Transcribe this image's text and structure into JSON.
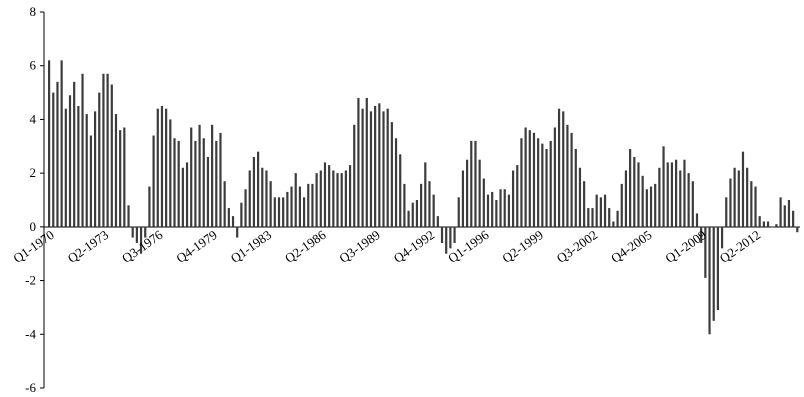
{
  "chart_data": {
    "type": "bar",
    "x_start_label": "Q1-1970",
    "x_tick_labels": [
      "Q1-1970",
      "Q2-1973",
      "Q3-1976",
      "Q4-1979",
      "Q1-1983",
      "Q2-1986",
      "Q3-1989",
      "Q4-1992",
      "Q1-1996",
      "Q2-1999",
      "Q3-2002",
      "Q4-2005",
      "Q1-2009",
      "Q2-2012"
    ],
    "y_ticks": [
      8,
      6,
      4,
      2,
      0,
      -2,
      -4,
      -6
    ],
    "ylim": [
      -6,
      8
    ],
    "grid": false,
    "legend": "none",
    "bar_color": "#3c3c3c",
    "values": [
      6.2,
      5.0,
      5.4,
      6.2,
      4.4,
      4.9,
      5.4,
      4.5,
      5.7,
      4.2,
      3.4,
      4.3,
      5.0,
      5.7,
      5.7,
      5.3,
      4.2,
      3.6,
      3.7,
      0.8,
      -0.4,
      -0.6,
      -1.0,
      -0.4,
      1.5,
      3.4,
      4.4,
      4.5,
      4.4,
      4.0,
      3.3,
      3.2,
      2.2,
      2.4,
      3.7,
      3.2,
      3.8,
      3.3,
      2.6,
      3.8,
      3.2,
      3.5,
      1.7,
      0.7,
      0.4,
      -0.4,
      0.9,
      1.4,
      2.1,
      2.6,
      2.8,
      2.2,
      2.1,
      1.7,
      1.1,
      1.1,
      1.1,
      1.3,
      1.5,
      2.0,
      1.5,
      1.1,
      1.6,
      1.6,
      2.0,
      2.1,
      2.4,
      2.3,
      2.1,
      2.0,
      2.0,
      2.1,
      2.3,
      3.8,
      4.8,
      4.4,
      4.8,
      4.3,
      4.5,
      4.6,
      4.3,
      4.4,
      3.9,
      3.3,
      2.7,
      1.6,
      0.6,
      0.9,
      1.0,
      1.6,
      2.4,
      1.7,
      1.2,
      0.4,
      -0.6,
      -1.0,
      -0.8,
      -0.6,
      1.1,
      2.1,
      2.5,
      3.2,
      3.2,
      2.5,
      1.8,
      1.2,
      1.3,
      1.0,
      1.4,
      1.4,
      1.2,
      2.1,
      2.3,
      3.3,
      3.7,
      3.6,
      3.5,
      3.3,
      3.1,
      2.9,
      3.2,
      3.7,
      4.4,
      4.3,
      3.8,
      3.5,
      2.9,
      2.2,
      1.7,
      0.7,
      0.7,
      1.2,
      1.1,
      1.2,
      0.7,
      0.2,
      0.6,
      1.6,
      2.1,
      2.9,
      2.6,
      2.4,
      1.9,
      1.4,
      1.5,
      1.6,
      2.2,
      3.0,
      2.4,
      2.4,
      2.5,
      2.1,
      2.5,
      2.0,
      1.7,
      0.5,
      -0.6,
      -1.9,
      -4.0,
      -3.5,
      -3.1,
      -0.8,
      1.1,
      1.8,
      2.2,
      2.1,
      2.8,
      2.2,
      1.7,
      1.5,
      0.4,
      0.2,
      0.2,
      0.0,
      0.1,
      1.1,
      0.8,
      1.0,
      0.6,
      -0.2
    ]
  }
}
